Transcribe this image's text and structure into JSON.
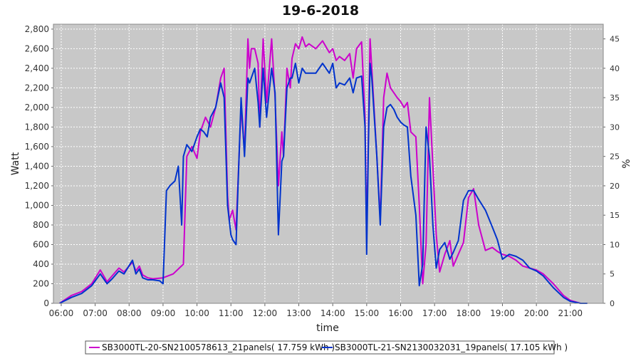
{
  "chart_data": {
    "type": "line",
    "title": "19-6-2018",
    "xlabel": "time",
    "ylabel": "Watt",
    "y2label": "%",
    "x_tick_labels": [
      "06:00",
      "07:00",
      "08:00",
      "09:00",
      "10:00",
      "11:00",
      "12:00",
      "13:00",
      "14:00",
      "15:00",
      "16:00",
      "17:00",
      "18:00",
      "19:00",
      "20:00",
      "21:00"
    ],
    "xlim": [
      5.77,
      21.97
    ],
    "ylim": [
      0,
      2850
    ],
    "y_ticks": [
      0,
      200,
      400,
      600,
      800,
      1000,
      1200,
      1400,
      1600,
      1800,
      2000,
      2200,
      2400,
      2600,
      2800
    ],
    "y_tick_labels": [
      "0",
      "200",
      "400",
      "600",
      "800",
      "1,000",
      "1,200",
      "1,400",
      "1,600",
      "1,800",
      "2,000",
      "2,200",
      "2,400",
      "2,600",
      "2,800"
    ],
    "y2lim": [
      0,
      47.5
    ],
    "y2_ticks": [
      0,
      5,
      10,
      15,
      20,
      25,
      30,
      35,
      40,
      45
    ],
    "grid": true,
    "legend_position": "bottom",
    "series": [
      {
        "name": "SB3000TL-20-SN2100578613_21panels( 17.759 kWh )",
        "color": "#cc00cc",
        "x": [
          5.95,
          6.3,
          6.6,
          6.9,
          7.15,
          7.35,
          7.5,
          7.7,
          7.85,
          8.1,
          8.2,
          8.3,
          8.4,
          8.55,
          8.7,
          9.0,
          9.3,
          9.6,
          9.7,
          9.85,
          10.0,
          10.1,
          10.25,
          10.4,
          10.55,
          10.7,
          10.8,
          10.9,
          10.95,
          11.05,
          11.15,
          11.3,
          11.4,
          11.5,
          11.55,
          11.6,
          11.7,
          11.8,
          11.85,
          11.95,
          12.05,
          12.2,
          12.3,
          12.4,
          12.5,
          12.55,
          12.65,
          12.75,
          12.8,
          12.9,
          13.0,
          13.1,
          13.2,
          13.3,
          13.5,
          13.7,
          13.9,
          14.0,
          14.1,
          14.2,
          14.35,
          14.5,
          14.6,
          14.7,
          14.85,
          14.95,
          15.0,
          15.05,
          15.1,
          15.15,
          15.3,
          15.4,
          15.5,
          15.6,
          15.7,
          15.8,
          15.9,
          16.0,
          16.1,
          16.2,
          16.3,
          16.45,
          16.55,
          16.65,
          16.75,
          16.85,
          16.95,
          17.05,
          17.15,
          17.3,
          17.45,
          17.55,
          17.7,
          17.85,
          18.0,
          18.15,
          18.3,
          18.5,
          18.7,
          18.85,
          19.0,
          19.2,
          19.4,
          19.6,
          19.8,
          20.0,
          20.2,
          20.5,
          20.8,
          21.0,
          21.3,
          21.5
        ],
        "y": [
          0,
          80,
          120,
          200,
          340,
          220,
          280,
          360,
          320,
          420,
          330,
          380,
          290,
          260,
          250,
          260,
          300,
          400,
          1500,
          1600,
          1480,
          1750,
          1900,
          1800,
          2000,
          2300,
          2400,
          1100,
          850,
          950,
          750,
          2000,
          1550,
          2700,
          2400,
          2600,
          2600,
          2450,
          1800,
          2700,
          2050,
          2700,
          2100,
          1200,
          1750,
          1500,
          2400,
          2200,
          2500,
          2650,
          2600,
          2720,
          2620,
          2650,
          2600,
          2680,
          2560,
          2600,
          2480,
          2520,
          2480,
          2550,
          2300,
          2600,
          2670,
          1900,
          700,
          1700,
          2700,
          2400,
          1500,
          850,
          2100,
          2350,
          2200,
          2150,
          2100,
          2060,
          2000,
          2050,
          1750,
          1700,
          1000,
          200,
          600,
          2100,
          1400,
          700,
          320,
          500,
          640,
          380,
          500,
          620,
          1080,
          1170,
          800,
          540,
          570,
          530,
          500,
          480,
          440,
          380,
          360,
          340,
          300,
          200,
          80,
          30,
          0,
          0
        ]
      },
      {
        "name": "SB3000TL-21-SN2130032031_19panels( 17.105 kWh )",
        "color": "#0033cc",
        "x": [
          5.95,
          6.3,
          6.6,
          6.9,
          7.15,
          7.35,
          7.5,
          7.7,
          7.85,
          8.1,
          8.2,
          8.3,
          8.4,
          8.55,
          8.7,
          8.9,
          9.0,
          9.1,
          9.2,
          9.35,
          9.45,
          9.55,
          9.6,
          9.7,
          9.85,
          10.0,
          10.1,
          10.2,
          10.3,
          10.4,
          10.55,
          10.7,
          10.8,
          10.9,
          11.0,
          11.05,
          11.15,
          11.3,
          11.4,
          11.5,
          11.55,
          11.6,
          11.7,
          11.8,
          11.85,
          11.95,
          12.05,
          12.2,
          12.3,
          12.4,
          12.5,
          12.55,
          12.65,
          12.75,
          12.8,
          12.9,
          13.0,
          13.1,
          13.2,
          13.3,
          13.5,
          13.7,
          13.9,
          14.0,
          14.1,
          14.2,
          14.35,
          14.5,
          14.6,
          14.7,
          14.85,
          14.95,
          15.0,
          15.05,
          15.1,
          15.15,
          15.3,
          15.4,
          15.5,
          15.6,
          15.7,
          15.8,
          15.9,
          16.0,
          16.1,
          16.2,
          16.3,
          16.45,
          16.55,
          16.65,
          16.75,
          16.85,
          16.95,
          17.05,
          17.15,
          17.3,
          17.45,
          17.55,
          17.7,
          17.85,
          18.0,
          18.15,
          18.3,
          18.5,
          18.7,
          18.85,
          19.0,
          19.2,
          19.4,
          19.6,
          19.8,
          20.0,
          20.2,
          20.5,
          20.8,
          21.0,
          21.3,
          21.5
        ],
        "y": [
          0,
          60,
          100,
          180,
          300,
          200,
          250,
          330,
          300,
          440,
          300,
          350,
          260,
          240,
          240,
          230,
          200,
          1150,
          1200,
          1250,
          1400,
          800,
          1500,
          1620,
          1550,
          1700,
          1780,
          1750,
          1700,
          1900,
          2000,
          2250,
          2100,
          1000,
          700,
          650,
          600,
          2100,
          1500,
          2300,
          2250,
          2300,
          2400,
          2050,
          1800,
          2400,
          1900,
          2400,
          2150,
          700,
          1450,
          1500,
          2200,
          2300,
          2300,
          2450,
          2250,
          2400,
          2350,
          2350,
          2350,
          2450,
          2350,
          2450,
          2200,
          2250,
          2230,
          2300,
          2150,
          2300,
          2320,
          1800,
          500,
          1600,
          2450,
          2300,
          1500,
          800,
          1800,
          2000,
          2030,
          1980,
          1900,
          1850,
          1820,
          1800,
          1300,
          900,
          180,
          400,
          1800,
          1500,
          800,
          360,
          550,
          620,
          450,
          520,
          640,
          1050,
          1150,
          1150,
          1060,
          950,
          780,
          650,
          450,
          500,
          480,
          440,
          360,
          330,
          280,
          160,
          60,
          20,
          0,
          0
        ]
      }
    ]
  }
}
